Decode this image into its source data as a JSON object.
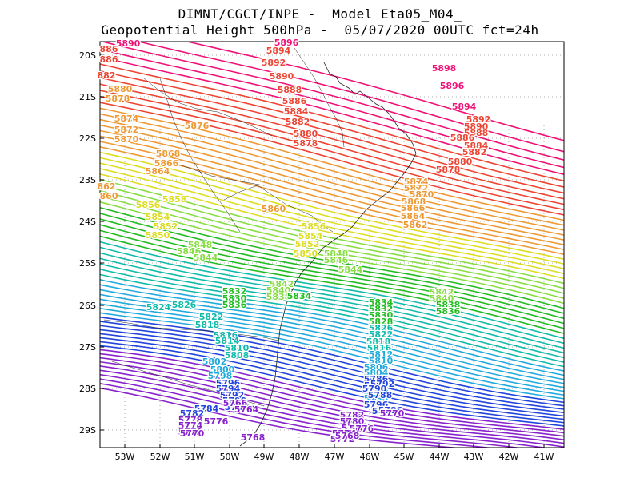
{
  "header": {
    "line1": "DIMNT/CGCT/INPE -  Model Eta05_M04_",
    "line2": "Geopotential Height 500hPa -  05/07/2020 00UTC fct=24h"
  },
  "axes": {
    "lat_labels": [
      "20S",
      "21S",
      "22S",
      "23S",
      "24S",
      "25S",
      "26S",
      "27S",
      "28S",
      "29S"
    ],
    "lon_labels": [
      "53W",
      "52W",
      "51W",
      "50W",
      "49W",
      "48W",
      "47W",
      "46W",
      "45W",
      "44W",
      "43W",
      "42W",
      "41W"
    ]
  },
  "contours": {
    "min": 5762,
    "max": 5898,
    "interval": 2,
    "colors": {
      "high": "#ee1177",
      "red": "#ee4433",
      "orange": "#ee9933",
      "yellow": "#dddd22",
      "lightgreen": "#88dd44",
      "green": "#22bb22",
      "teal": "#11bbaa",
      "cyan": "#22aadd",
      "blue": "#2244dd",
      "purple": "#8822cc"
    }
  },
  "labels": [
    {
      "text": "5890",
      "c": "high"
    },
    {
      "text": "5896",
      "c": "high"
    },
    {
      "text": "5898",
      "c": "high"
    },
    {
      "text": "5896",
      "c": "high"
    },
    {
      "text": "5894",
      "c": "high"
    },
    {
      "text": "5894",
      "c": "red"
    },
    {
      "text": "5892",
      "c": "red"
    },
    {
      "text": "5890",
      "c": "red"
    },
    {
      "text": "5888",
      "c": "red"
    },
    {
      "text": "5886",
      "c": "red"
    },
    {
      "text": "5884",
      "c": "red"
    },
    {
      "text": "5882",
      "c": "red"
    },
    {
      "text": "5880",
      "c": "red"
    },
    {
      "text": "5878",
      "c": "red"
    },
    {
      "text": "5892",
      "c": "red"
    },
    {
      "text": "5890",
      "c": "red"
    },
    {
      "text": "5888",
      "c": "red"
    },
    {
      "text": "5886",
      "c": "red"
    },
    {
      "text": "5884",
      "c": "red"
    },
    {
      "text": "5882",
      "c": "red"
    },
    {
      "text": "5880",
      "c": "red"
    },
    {
      "text": "5878",
      "c": "red"
    },
    {
      "text": "886",
      "c": "red"
    },
    {
      "text": "886",
      "c": "red"
    },
    {
      "text": "882",
      "c": "red"
    },
    {
      "text": "5880",
      "c": "orange"
    },
    {
      "text": "5878",
      "c": "orange"
    },
    {
      "text": "5874",
      "c": "orange"
    },
    {
      "text": "5872",
      "c": "orange"
    },
    {
      "text": "5870",
      "c": "orange"
    },
    {
      "text": "5876",
      "c": "orange"
    },
    {
      "text": "5868",
      "c": "orange"
    },
    {
      "text": "5866",
      "c": "orange"
    },
    {
      "text": "5864",
      "c": "orange"
    },
    {
      "text": "862",
      "c": "orange"
    },
    {
      "text": "860",
      "c": "orange"
    },
    {
      "text": "5874",
      "c": "orange"
    },
    {
      "text": "5872",
      "c": "orange"
    },
    {
      "text": "5870",
      "c": "orange"
    },
    {
      "text": "5868",
      "c": "orange"
    },
    {
      "text": "5866",
      "c": "orange"
    },
    {
      "text": "5864",
      "c": "orange"
    },
    {
      "text": "5862",
      "c": "orange"
    },
    {
      "text": "5860",
      "c": "orange"
    },
    {
      "text": "5858",
      "c": "yellow"
    },
    {
      "text": "5856",
      "c": "yellow"
    },
    {
      "text": "5854",
      "c": "yellow"
    },
    {
      "text": "5852",
      "c": "yellow"
    },
    {
      "text": "5850",
      "c": "yellow"
    },
    {
      "text": "5856",
      "c": "yellow"
    },
    {
      "text": "5854",
      "c": "yellow"
    },
    {
      "text": "5852",
      "c": "yellow"
    },
    {
      "text": "5850",
      "c": "yellow"
    },
    {
      "text": "5848",
      "c": "lightgreen"
    },
    {
      "text": "5846",
      "c": "lightgreen"
    },
    {
      "text": "5844",
      "c": "lightgreen"
    },
    {
      "text": "5848",
      "c": "lightgreen"
    },
    {
      "text": "5846",
      "c": "lightgreen"
    },
    {
      "text": "5844",
      "c": "lightgreen"
    },
    {
      "text": "5842",
      "c": "lightgreen"
    },
    {
      "text": "5840",
      "c": "lightgreen"
    },
    {
      "text": "5838",
      "c": "lightgreen"
    },
    {
      "text": "5842",
      "c": "lightgreen"
    },
    {
      "text": "5840",
      "c": "lightgreen"
    },
    {
      "text": "5838",
      "c": "green"
    },
    {
      "text": "5836",
      "c": "green"
    },
    {
      "text": "5834",
      "c": "green"
    },
    {
      "text": "5832",
      "c": "green"
    },
    {
      "text": "5830",
      "c": "green"
    },
    {
      "text": "5836",
      "c": "green"
    },
    {
      "text": "5834",
      "c": "green"
    },
    {
      "text": "5832",
      "c": "green"
    },
    {
      "text": "5830",
      "c": "green"
    },
    {
      "text": "5828",
      "c": "green"
    },
    {
      "text": "5824",
      "c": "teal"
    },
    {
      "text": "5826",
      "c": "teal"
    },
    {
      "text": "5822",
      "c": "teal"
    },
    {
      "text": "5818",
      "c": "teal"
    },
    {
      "text": "5816",
      "c": "teal"
    },
    {
      "text": "5814",
      "c": "teal"
    },
    {
      "text": "5810",
      "c": "teal"
    },
    {
      "text": "5808",
      "c": "teal"
    },
    {
      "text": "5826",
      "c": "teal"
    },
    {
      "text": "5822",
      "c": "teal"
    },
    {
      "text": "5818",
      "c": "teal"
    },
    {
      "text": "5816",
      "c": "teal"
    },
    {
      "text": "5812",
      "c": "cyan"
    },
    {
      "text": "5810",
      "c": "cyan"
    },
    {
      "text": "5806",
      "c": "cyan"
    },
    {
      "text": "5804",
      "c": "cyan"
    },
    {
      "text": "5802",
      "c": "cyan"
    },
    {
      "text": "5800",
      "c": "cyan"
    },
    {
      "text": "5798",
      "c": "cyan"
    },
    {
      "text": "5796",
      "c": "blue"
    },
    {
      "text": "5794",
      "c": "blue"
    },
    {
      "text": "5792",
      "c": "blue"
    },
    {
      "text": "5790",
      "c": "blue"
    },
    {
      "text": "5788",
      "c": "blue"
    },
    {
      "text": "5786",
      "c": "blue"
    },
    {
      "text": "5784",
      "c": "blue"
    },
    {
      "text": "5800",
      "c": "cyan"
    },
    {
      "text": "5798",
      "c": "cyan"
    },
    {
      "text": "5796",
      "c": "blue"
    },
    {
      "text": "5794",
      "c": "blue"
    },
    {
      "text": "5792",
      "c": "blue"
    },
    {
      "text": "5790",
      "c": "blue"
    },
    {
      "text": "5788",
      "c": "blue"
    },
    {
      "text": "5786",
      "c": "blue"
    },
    {
      "text": "5784",
      "c": "blue"
    },
    {
      "text": "5782",
      "c": "blue"
    },
    {
      "text": "5778",
      "c": "purple"
    },
    {
      "text": "5776",
      "c": "purple"
    },
    {
      "text": "5774",
      "c": "purple"
    },
    {
      "text": "5772",
      "c": "purple"
    },
    {
      "text": "5770",
      "c": "purple"
    },
    {
      "text": "5768",
      "c": "purple"
    },
    {
      "text": "5766",
      "c": "purple"
    },
    {
      "text": "5764",
      "c": "purple"
    },
    {
      "text": "5782",
      "c": "purple"
    },
    {
      "text": "5780",
      "c": "purple"
    },
    {
      "text": "5778",
      "c": "purple"
    },
    {
      "text": "5776",
      "c": "purple"
    },
    {
      "text": "5774",
      "c": "purple"
    },
    {
      "text": "5772",
      "c": "purple"
    },
    {
      "text": "5770",
      "c": "purple"
    },
    {
      "text": "5768",
      "c": "purple"
    },
    {
      "text": "5780",
      "c": "purple"
    },
    {
      "text": "5764",
      "c": "purple"
    }
  ]
}
